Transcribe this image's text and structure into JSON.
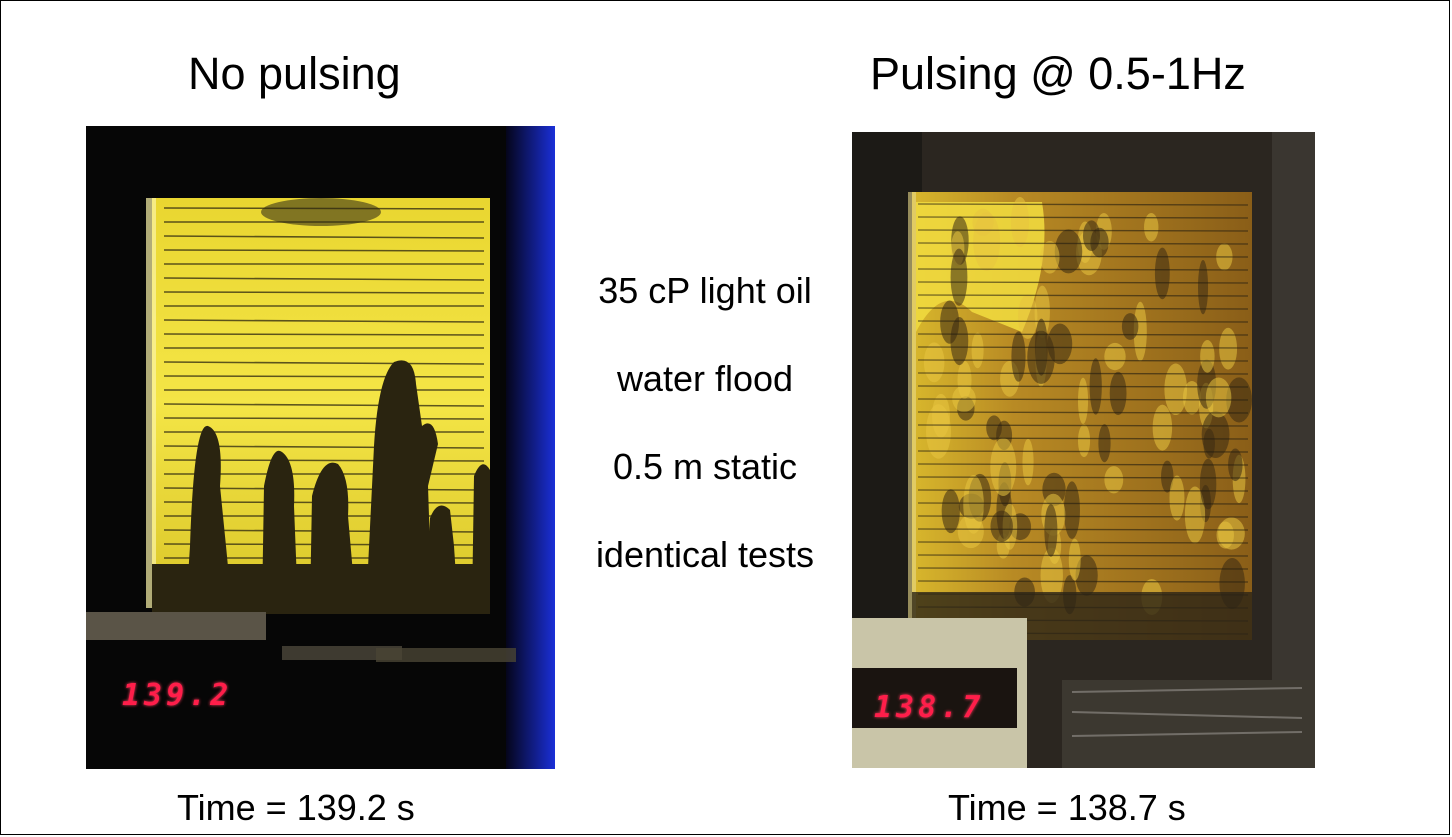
{
  "left": {
    "heading": "No pulsing",
    "caption": "Time = 139.2 s",
    "counter": "139.2"
  },
  "right": {
    "heading": "Pulsing @ 0.5-1Hz",
    "caption": "Time = 138.7 s",
    "counter": "138.7"
  },
  "notes": [
    "35 cP light oil",
    "water flood",
    "0.5 m static",
    "identical tests"
  ],
  "colors": {
    "oil": "#f2e23a",
    "water_finger": "#2a2410",
    "background": "#0a0a0a",
    "led": "#ff1e4a"
  }
}
